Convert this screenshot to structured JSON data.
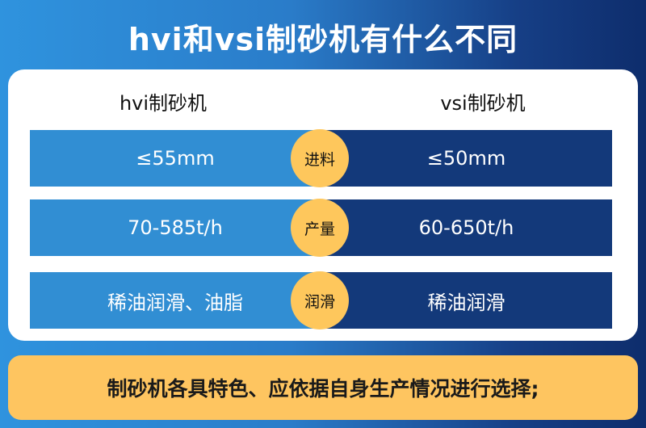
{
  "title": "hvi和vsi制砂机有什么不同",
  "headers": {
    "left": "hvi制砂机",
    "right": "vsi制砂机"
  },
  "rows": [
    {
      "label": "进料",
      "left": "≤55mm",
      "right": "≤50mm"
    },
    {
      "label": "产量",
      "left": "70-585t/h",
      "right": "60-650t/h"
    },
    {
      "label": "润滑",
      "left": "稀油润滑、油脂",
      "right": "稀油润滑"
    }
  ],
  "footer": "制砂机各具特色、应依据自身生产情况进行选择;",
  "colors": {
    "left": "#318ed3",
    "right": "#13397a",
    "badge": "#fec75c"
  }
}
